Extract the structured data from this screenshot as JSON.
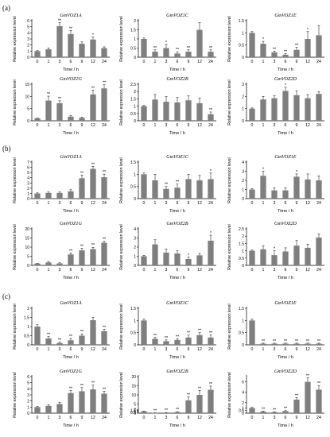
{
  "panel_labels": [
    "(a)",
    "(b)",
    "(c)"
  ],
  "bar_color": "#7f7f7f",
  "chart_data": [
    {
      "type": "bar",
      "panel": "(a)",
      "title": "GmVOZ1A",
      "xlabel": "Time / h",
      "ylabel": "Relative expression level",
      "categories": [
        "0",
        "1",
        "3",
        "6",
        "9",
        "12",
        "24"
      ],
      "values": [
        1,
        1.3,
        5.1,
        3.8,
        2.2,
        2.9,
        1.5
      ],
      "errors": [
        0.1,
        0.2,
        0.6,
        0.6,
        0.3,
        0.4,
        0.2
      ],
      "significance": [
        "",
        "",
        "**",
        "**",
        "",
        "*",
        ""
      ],
      "ylim": [
        0,
        6
      ],
      "yticks": [
        0,
        1,
        2,
        3,
        4,
        5,
        6
      ]
    },
    {
      "type": "bar",
      "panel": "(a)",
      "title": "GmVOZ1C",
      "xlabel": "Time / h",
      "ylabel": "Relative expression level",
      "categories": [
        "0",
        "1",
        "3",
        "6",
        "9",
        "12",
        "24"
      ],
      "values": [
        1,
        0.3,
        0.5,
        0.2,
        0.3,
        1.5,
        0.3
      ],
      "errors": [
        0.05,
        0.1,
        0.2,
        0.1,
        0.1,
        0.4,
        0.1
      ],
      "significance": [
        "",
        "**",
        "*",
        "**",
        "**",
        "",
        "**"
      ],
      "ylim": [
        0,
        2
      ],
      "yticks": [
        0,
        0.5,
        1,
        1.5,
        2
      ]
    },
    {
      "type": "bar",
      "panel": "(a)",
      "title": "GmVOZ1E",
      "xlabel": "Time / h",
      "ylabel": "Relative expression level",
      "categories": [
        "0",
        "1",
        "3",
        "6",
        "9",
        "12",
        "24"
      ],
      "values": [
        1,
        0.55,
        0.2,
        0.1,
        0.3,
        0.75,
        0.9
      ],
      "errors": [
        0.05,
        0.1,
        0.05,
        0.05,
        0.1,
        0.3,
        0.4
      ],
      "significance": [
        "",
        "*",
        "**",
        "**",
        "**",
        "*",
        ""
      ],
      "ylim": [
        0,
        1.5
      ],
      "yticks": [
        0,
        0.5,
        1,
        1.5
      ]
    },
    {
      "type": "bar",
      "panel": "(a)",
      "title": "GmVOZ1G",
      "xlabel": "Time / h",
      "ylabel": "Relative expression level",
      "categories": [
        "0",
        "1",
        "3",
        "6",
        "9",
        "12",
        "24"
      ],
      "values": [
        1,
        8.3,
        7.2,
        1.7,
        1.2,
        10.8,
        13.3
      ],
      "errors": [
        0.1,
        1.8,
        1.0,
        0.4,
        0.3,
        1.8,
        1.5
      ],
      "significance": [
        "",
        "**",
        "**",
        "",
        "",
        "**",
        "**"
      ],
      "ylim": [
        0,
        15
      ],
      "yticks": [
        0,
        5,
        10,
        15
      ]
    },
    {
      "type": "bar",
      "panel": "(a)",
      "title": "GmVOZ2B",
      "xlabel": "Time / h",
      "ylabel": "Relative expression level",
      "categories": [
        "0",
        "1",
        "3",
        "6",
        "9",
        "12",
        "24"
      ],
      "values": [
        1,
        1.45,
        1.3,
        1.25,
        1.4,
        1.2,
        0.45
      ],
      "errors": [
        0.05,
        0.35,
        0.35,
        0.35,
        0.3,
        0.35,
        0.15
      ],
      "significance": [
        "",
        "",
        "",
        "",
        "",
        "",
        "**"
      ],
      "ylim": [
        0,
        2.5
      ],
      "yticks": [
        0,
        0.5,
        1,
        1.5,
        2,
        2.5
      ]
    },
    {
      "type": "bar",
      "panel": "(a)",
      "title": "GmVOZ2D",
      "xlabel": "Time / h",
      "ylabel": "Relative expression level",
      "categories": [
        "0",
        "1",
        "3",
        "6",
        "9",
        "12",
        "24"
      ],
      "values": [
        1,
        1.75,
        1.85,
        2.45,
        2.1,
        1.85,
        2.2
      ],
      "errors": [
        0.05,
        0.25,
        0.2,
        0.3,
        0.35,
        0.3,
        0.2
      ],
      "significance": [
        "",
        "",
        "",
        "*",
        "",
        "",
        ""
      ],
      "ylim": [
        0,
        3
      ],
      "yticks": [
        0,
        1,
        2,
        3
      ]
    },
    {
      "type": "bar",
      "panel": "(b)",
      "title": "GmVOZ1A",
      "xlabel": "Time / h",
      "ylabel": "Relative expression level",
      "categories": [
        "0",
        "1",
        "3",
        "6",
        "9",
        "12",
        "24"
      ],
      "values": [
        1,
        1.1,
        1.1,
        1.4,
        3.9,
        5.7,
        4.1
      ],
      "errors": [
        0.1,
        0.2,
        0.2,
        0.3,
        0.6,
        0.5,
        0.6
      ],
      "significance": [
        "",
        "",
        "",
        "",
        "**",
        "**",
        "**"
      ],
      "ylim": [
        0,
        7
      ],
      "yticks": [
        0,
        1,
        2,
        3,
        4,
        5,
        6,
        7
      ]
    },
    {
      "type": "bar",
      "panel": "(b)",
      "title": "GmVOZ1C",
      "xlabel": "Time / h",
      "ylabel": "Relative expression level",
      "categories": [
        "0",
        "1",
        "3",
        "6",
        "9",
        "12",
        "24"
      ],
      "values": [
        1,
        0.75,
        0.4,
        0.45,
        0.8,
        0.75,
        0.8
      ],
      "errors": [
        0.05,
        0.25,
        0.1,
        0.15,
        0.2,
        0.2,
        0.25
      ],
      "significance": [
        "",
        "",
        "**",
        "**",
        "",
        "",
        "*"
      ],
      "ylim": [
        0,
        1.5
      ],
      "yticks": [
        0,
        0.5,
        1,
        1.5
      ]
    },
    {
      "type": "bar",
      "panel": "(b)",
      "title": "GmVOZ1E",
      "xlabel": "Time / h",
      "ylabel": "Relative expression level",
      "categories": [
        "0",
        "1",
        "3",
        "6",
        "9",
        "12",
        "24"
      ],
      "values": [
        1,
        2.5,
        0.9,
        0.9,
        2.4,
        2.1,
        2.0
      ],
      "errors": [
        0.1,
        0.5,
        0.3,
        0.3,
        0.3,
        0.6,
        0.5
      ],
      "significance": [
        "",
        "*",
        "",
        "",
        "*",
        "",
        ""
      ],
      "ylim": [
        0,
        4
      ],
      "yticks": [
        0,
        1,
        2,
        3,
        4
      ]
    },
    {
      "type": "bar",
      "panel": "(b)",
      "title": "GmVOZ1G",
      "xlabel": "Time / h",
      "ylabel": "Relative expression level",
      "categories": [
        "0",
        "1",
        "3",
        "6",
        "9",
        "12",
        "24"
      ],
      "values": [
        1,
        1.6,
        1.1,
        6.0,
        8.2,
        8.9,
        12.4
      ],
      "errors": [
        0.1,
        0.4,
        0.3,
        0.8,
        1.2,
        1.0,
        0.8
      ],
      "significance": [
        "",
        "",
        "",
        "**",
        "**",
        "**",
        "**"
      ],
      "ylim": [
        0,
        20
      ],
      "yticks": [
        0,
        5,
        10,
        15,
        20
      ]
    },
    {
      "type": "bar",
      "panel": "(b)",
      "title": "GmVOZ2B",
      "xlabel": "Time / h",
      "ylabel": "Relative expression level",
      "categories": [
        "0",
        "1",
        "3",
        "6",
        "9",
        "12",
        "24"
      ],
      "values": [
        1,
        2.3,
        1.4,
        1.3,
        0.7,
        1.1,
        2.7
      ],
      "errors": [
        0.1,
        0.5,
        0.4,
        0.3,
        0.2,
        0.2,
        0.6
      ],
      "significance": [
        "",
        "",
        "",
        "",
        "*",
        "",
        "*"
      ],
      "ylim": [
        0,
        4
      ],
      "yticks": [
        0,
        1,
        2,
        3,
        4
      ]
    },
    {
      "type": "bar",
      "panel": "(b)",
      "title": "GmVOZ2D",
      "xlabel": "Time / h",
      "ylabel": "Relative expression level",
      "categories": [
        "0",
        "1",
        "3",
        "6",
        "9",
        "12",
        "24"
      ],
      "values": [
        1,
        1.1,
        0.7,
        0.95,
        1.35,
        1.2,
        1.9
      ],
      "errors": [
        0.05,
        0.25,
        0.3,
        0.25,
        0.35,
        0.25,
        0.25
      ],
      "significance": [
        "",
        "",
        "*",
        "",
        "",
        "",
        ""
      ],
      "ylim": [
        0,
        2.5
      ],
      "yticks": [
        0,
        0.5,
        1,
        1.5,
        2,
        2.5
      ]
    },
    {
      "type": "bar",
      "panel": "(c)",
      "title": "GmVOZ1A",
      "xlabel": "Time / h",
      "ylabel": "Relative expression level",
      "categories": [
        "0",
        "1",
        "3",
        "6",
        "9",
        "12",
        "24"
      ],
      "values": [
        1,
        0.35,
        0.1,
        0.25,
        0.5,
        1.35,
        0.75
      ],
      "errors": [
        0.1,
        0.1,
        0.05,
        0.1,
        0.1,
        0.15,
        0.1
      ],
      "significance": [
        "",
        "**",
        "**",
        "**",
        "**",
        "",
        "**"
      ],
      "ylim": [
        0,
        2
      ],
      "yticks": [
        0,
        0.5,
        1,
        1.5,
        2
      ]
    },
    {
      "type": "bar",
      "panel": "(c)",
      "title": "GmVOZ1C",
      "xlabel": "Time / h",
      "ylabel": "Relative expression level",
      "categories": [
        "0",
        "1",
        "3",
        "6",
        "9",
        "12",
        "24"
      ],
      "values": [
        1,
        0.25,
        0.15,
        0.2,
        0.3,
        0.4,
        0.3
      ],
      "errors": [
        0.05,
        0.05,
        0.05,
        0.05,
        0.1,
        0.1,
        0.1
      ],
      "significance": [
        "",
        "**",
        "**",
        "**",
        "**",
        "**",
        "**"
      ],
      "ylim": [
        0,
        1.5
      ],
      "yticks": [
        0,
        0.5,
        1,
        1.5
      ]
    },
    {
      "type": "bar",
      "panel": "(c)",
      "title": "GmVOZ1E",
      "xlabel": "Time / h",
      "ylabel": "Relative expression level",
      "categories": [
        "0",
        "1",
        "3",
        "6",
        "9",
        "12",
        "24"
      ],
      "values": [
        1,
        0.05,
        0.05,
        0.05,
        0.05,
        0.05,
        0.05
      ],
      "errors": [
        0.05,
        0.02,
        0.02,
        0.02,
        0.02,
        0.02,
        0.02
      ],
      "significance": [
        "",
        "**",
        "**",
        "**",
        "**",
        "**",
        "**"
      ],
      "ylim": [
        0,
        1.5
      ],
      "yticks": [
        0,
        0.5,
        1,
        1.5
      ]
    },
    {
      "type": "bar",
      "panel": "(c)",
      "title": "GmVOZ1G",
      "xlabel": "Time / h",
      "ylabel": "Relative expression level",
      "categories": [
        "0",
        "1",
        "3",
        "6",
        "9",
        "12",
        "24"
      ],
      "values": [
        1,
        1.2,
        1.5,
        3.3,
        3.6,
        3.9,
        3.2
      ],
      "errors": [
        0.1,
        0.2,
        0.3,
        0.4,
        0.6,
        0.7,
        0.4
      ],
      "significance": [
        "",
        "",
        "",
        "**",
        "**",
        "**",
        "**"
      ],
      "ylim": [
        0,
        6
      ],
      "yticks": [
        0,
        1,
        2,
        3,
        4,
        5,
        6
      ]
    },
    {
      "type": "bar",
      "panel": "(c)",
      "title": "GmVOZ2B",
      "xlabel": "Time / h",
      "ylabel": "Relative expression level",
      "categories": [
        "0",
        "1",
        "3",
        "6",
        "9",
        "12",
        "24"
      ],
      "values": [
        1,
        0.15,
        0.3,
        0.6,
        7.0,
        10.0,
        12.8
      ],
      "errors": [
        0.1,
        0.05,
        0.1,
        0.2,
        2.0,
        2.5,
        2.0
      ],
      "significance": [
        "",
        "**",
        "**",
        "**",
        "**",
        "**",
        "**"
      ],
      "ylim": [
        0,
        20
      ],
      "yticks": [
        0,
        0.5,
        1,
        1.5,
        2,
        5,
        10,
        15,
        20
      ]
    },
    {
      "type": "bar",
      "panel": "(c)",
      "title": "GmVOZ2D",
      "xlabel": "Time / h",
      "ylabel": "Relative expression level",
      "categories": [
        "0",
        "1",
        "3",
        "6",
        "9",
        "12",
        "24"
      ],
      "values": [
        1,
        0.3,
        0.2,
        0.4,
        2.6,
        6.0,
        4.5
      ],
      "errors": [
        0.1,
        0.1,
        0.05,
        0.1,
        0.4,
        0.8,
        0.8
      ],
      "significance": [
        "",
        "**",
        "**",
        "**",
        "**",
        "**",
        "**"
      ],
      "ylim": [
        0,
        7
      ],
      "yticks": [
        0,
        0.5,
        1,
        2,
        4,
        6
      ]
    }
  ]
}
